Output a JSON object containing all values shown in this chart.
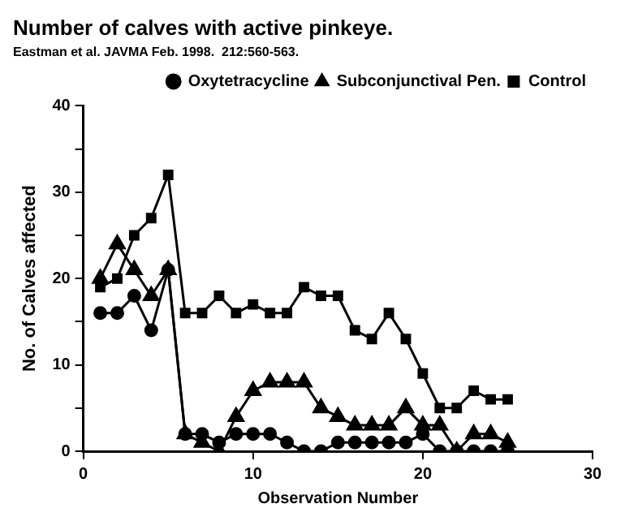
{
  "chart_data": {
    "type": "line",
    "title": "Number of calves with active pinkeye.",
    "subtitle": "Eastman et al. JAVMA Feb. 1998.  212:560-563.",
    "xlabel": "Observation Number",
    "ylabel": "No. of Calves affected",
    "x": [
      1,
      2,
      3,
      4,
      5,
      6,
      7,
      8,
      9,
      10,
      11,
      12,
      13,
      14,
      15,
      16,
      17,
      18,
      19,
      20,
      21,
      22,
      23,
      24,
      25
    ],
    "series": [
      {
        "name": "Oxytetracycline",
        "color": "#000000",
        "marker": "circle",
        "values": [
          16,
          16,
          18,
          14,
          21,
          2,
          2,
          1,
          2,
          2,
          2,
          1,
          0,
          0,
          1,
          1,
          1,
          1,
          1,
          2,
          0,
          0,
          0,
          0,
          0
        ]
      },
      {
        "name": "Subconjunctival Pen.",
        "color": "#000000",
        "marker": "triangle",
        "values": [
          20,
          24,
          21,
          18,
          21,
          2,
          1,
          0,
          4,
          7,
          8,
          8,
          8,
          5,
          4,
          3,
          3,
          3,
          5,
          3,
          3,
          0,
          2,
          2,
          1
        ]
      },
      {
        "name": "Control",
        "color": "#000000",
        "marker": "square",
        "values": [
          19,
          20,
          25,
          27,
          32,
          16,
          16,
          18,
          16,
          17,
          16,
          16,
          19,
          18,
          18,
          14,
          13,
          16,
          13,
          9,
          5,
          5,
          7,
          6,
          6
        ]
      }
    ],
    "xlim": [
      0,
      30
    ],
    "xticks": [
      0,
      10,
      20,
      30
    ],
    "ylim": [
      0,
      40
    ],
    "yticks": [
      0,
      {
        "value": 5,
        "label": null
      },
      10,
      {
        "value": 15,
        "label": null
      },
      20,
      {
        "value": 25,
        "label": null
      },
      30,
      {
        "value": 35,
        "label": null
      },
      40
    ],
    "grid": false,
    "legend": "top right",
    "line_style": "solid"
  }
}
